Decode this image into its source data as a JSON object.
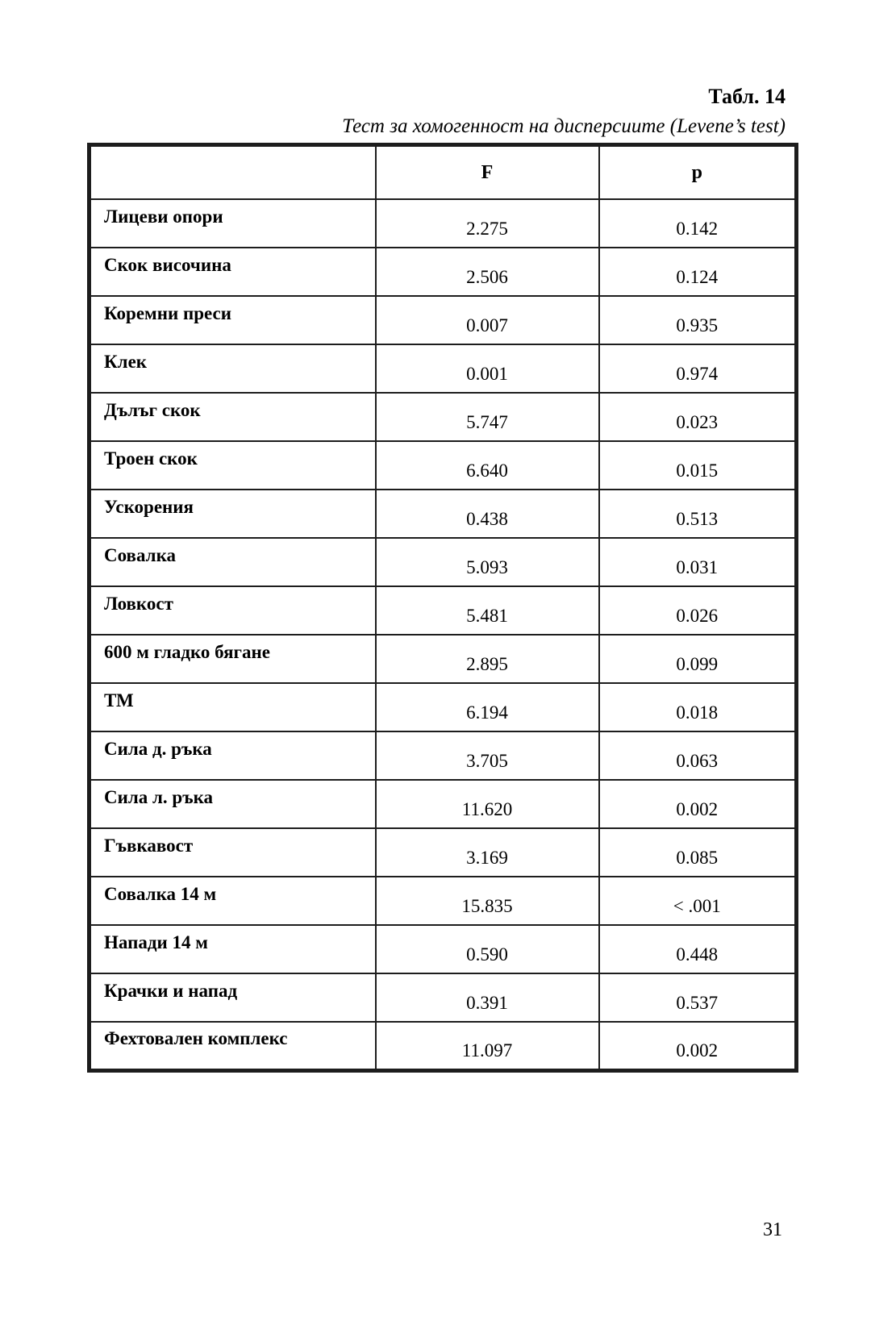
{
  "page": {
    "table_label": "Табл. 14",
    "caption": "Тест за хомогенност на дисперсиите (Levene’s test)",
    "page_number": "31"
  },
  "table": {
    "headers": [
      "",
      "F",
      "p"
    ],
    "rows": [
      {
        "label": "Лицеви опори",
        "f": "2.275",
        "p": "0.142"
      },
      {
        "label": "Скок височина",
        "f": "2.506",
        "p": "0.124"
      },
      {
        "label": "Коремни преси",
        "f": "0.007",
        "p": "0.935"
      },
      {
        "label": "Клек",
        "f": "0.001",
        "p": "0.974"
      },
      {
        "label": "Дълъг скок",
        "f": "5.747",
        "p": "0.023"
      },
      {
        "label": "Троен скок",
        "f": "6.640",
        "p": "0.015"
      },
      {
        "label": "Ускорения",
        "f": "0.438",
        "p": "0.513"
      },
      {
        "label": "Совалка",
        "f": "5.093",
        "p": "0.031"
      },
      {
        "label": "Ловкост",
        "f": "5.481",
        "p": "0.026"
      },
      {
        "label": "600 м гладко бягане",
        "f": "2.895",
        "p": "0.099"
      },
      {
        "label": "ТМ",
        "f": "6.194",
        "p": "0.018"
      },
      {
        "label": "Сила д. ръка",
        "f": "3.705",
        "p": "0.063"
      },
      {
        "label": "Сила л. ръка",
        "f": "11.620",
        "p": "0.002"
      },
      {
        "label": "Гъвкавост",
        "f": "3.169",
        "p": "0.085"
      },
      {
        "label": "Совалка 14 м",
        "f": "15.835",
        "p": "< .001"
      },
      {
        "label": "Напади 14 м",
        "f": "0.590",
        "p": "0.448"
      },
      {
        "label": "Крачки и напад",
        "f": "0.391",
        "p": "0.537"
      },
      {
        "label": "Фехтовален комплекс",
        "f": "11.097",
        "p": "0.002"
      }
    ]
  }
}
